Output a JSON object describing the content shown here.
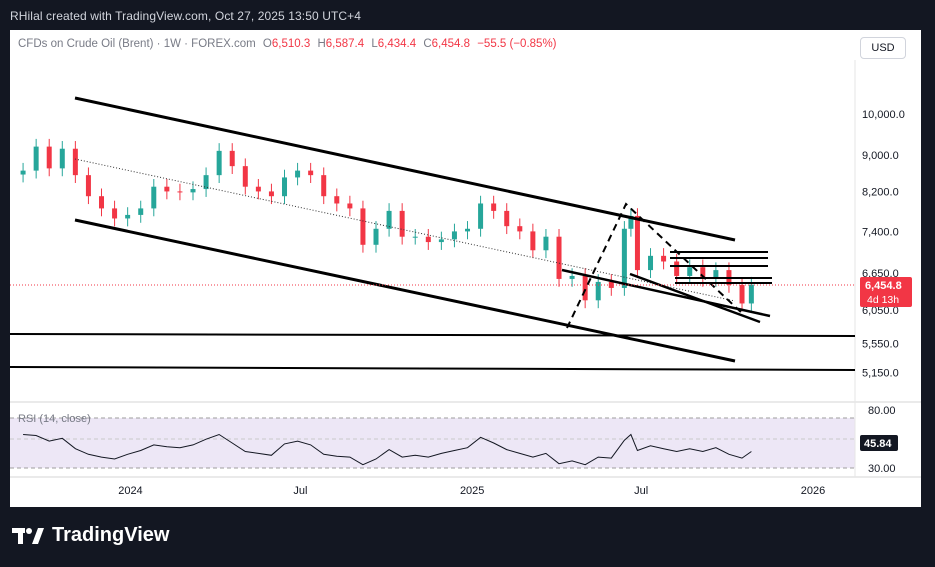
{
  "header": {
    "caption": "RHilal created with TradingView.com, Oct 27, 2025 13:50 UTC+4"
  },
  "symbol": {
    "title": "CFDs on Crude Oil (Brent) · 1W · FOREX.com",
    "open_label": "O",
    "open": "6,510.3",
    "high_label": "H",
    "high": "6,587.4",
    "low_label": "L",
    "low": "6,434.4",
    "close_label": "C",
    "close": "6,454.8",
    "change": "−55.5 (−0.85%)"
  },
  "currency_button": "USD",
  "price_badge": {
    "value": "6,454.8",
    "countdown": "4d 13h",
    "color": "#f23645"
  },
  "rsi": {
    "label": "RSI (14, close)",
    "value": "45.84",
    "upper": "80.00",
    "lower": "30.00"
  },
  "brand": {
    "name": "TradingView"
  },
  "colors": {
    "up": "#26a69a",
    "down": "#f23645",
    "rsi_band": "#ede7f6",
    "text": "#131722"
  },
  "chart_data": {
    "type": "candlestick",
    "title": "CFDs on Crude Oil (Brent) · 1W · FOREX.com",
    "y_scale": "log",
    "ylim": [
      4950,
      11200
    ],
    "y_ticks": [
      "10,000.0",
      "9,000.0",
      "8,200.0",
      "7,400.0",
      "6,650.0",
      "6,050.0",
      "5,550.0",
      "5,150.0"
    ],
    "x_ticks": [
      "2024",
      "Jul",
      "2025",
      "Jul",
      "2026"
    ],
    "close_series": [
      {
        "date": "2023-09-08",
        "value": 8650
      },
      {
        "date": "2023-09-22",
        "value": 9200
      },
      {
        "date": "2023-10-06",
        "value": 8700
      },
      {
        "date": "2023-10-20",
        "value": 9150
      },
      {
        "date": "2023-11-03",
        "value": 8550
      },
      {
        "date": "2023-11-17",
        "value": 8100
      },
      {
        "date": "2023-12-01",
        "value": 7850
      },
      {
        "date": "2023-12-15",
        "value": 7650
      },
      {
        "date": "2023-12-29",
        "value": 7720
      },
      {
        "date": "2024-01-12",
        "value": 7850
      },
      {
        "date": "2024-01-26",
        "value": 8300
      },
      {
        "date": "2024-02-09",
        "value": 8200
      },
      {
        "date": "2024-02-23",
        "value": 8180
      },
      {
        "date": "2024-03-08",
        "value": 8250
      },
      {
        "date": "2024-03-22",
        "value": 8550
      },
      {
        "date": "2024-04-05",
        "value": 9100
      },
      {
        "date": "2024-04-19",
        "value": 8750
      },
      {
        "date": "2024-05-03",
        "value": 8300
      },
      {
        "date": "2024-05-17",
        "value": 8200
      },
      {
        "date": "2024-05-31",
        "value": 8100
      },
      {
        "date": "2024-06-14",
        "value": 8500
      },
      {
        "date": "2024-06-28",
        "value": 8650
      },
      {
        "date": "2024-07-12",
        "value": 8550
      },
      {
        "date": "2024-07-26",
        "value": 8100
      },
      {
        "date": "2024-08-09",
        "value": 7950
      },
      {
        "date": "2024-08-23",
        "value": 7850
      },
      {
        "date": "2024-09-06",
        "value": 7150
      },
      {
        "date": "2024-09-20",
        "value": 7450
      },
      {
        "date": "2024-10-04",
        "value": 7800
      },
      {
        "date": "2024-10-18",
        "value": 7300
      },
      {
        "date": "2024-11-01",
        "value": 7300
      },
      {
        "date": "2024-11-15",
        "value": 7200
      },
      {
        "date": "2024-11-29",
        "value": 7250
      },
      {
        "date": "2024-12-13",
        "value": 7400
      },
      {
        "date": "2024-12-27",
        "value": 7450
      },
      {
        "date": "2025-01-10",
        "value": 7950
      },
      {
        "date": "2025-01-24",
        "value": 7800
      },
      {
        "date": "2025-02-07",
        "value": 7500
      },
      {
        "date": "2025-02-21",
        "value": 7400
      },
      {
        "date": "2025-03-07",
        "value": 7050
      },
      {
        "date": "2025-03-21",
        "value": 7300
      },
      {
        "date": "2025-04-04",
        "value": 6550
      },
      {
        "date": "2025-04-18",
        "value": 6600
      },
      {
        "date": "2025-05-02",
        "value": 6200
      },
      {
        "date": "2025-05-16",
        "value": 6500
      },
      {
        "date": "2025-05-30",
        "value": 6400
      },
      {
        "date": "2025-06-13",
        "value": 7450
      },
      {
        "date": "2025-06-20",
        "value": 7700
      },
      {
        "date": "2025-06-27",
        "value": 6700
      },
      {
        "date": "2025-07-11",
        "value": 6950
      },
      {
        "date": "2025-07-25",
        "value": 6850
      },
      {
        "date": "2025-08-08",
        "value": 6600
      },
      {
        "date": "2025-08-22",
        "value": 6750
      },
      {
        "date": "2025-09-05",
        "value": 6550
      },
      {
        "date": "2025-09-19",
        "value": 6700
      },
      {
        "date": "2025-10-03",
        "value": 6450
      },
      {
        "date": "2025-10-17",
        "value": 6150
      },
      {
        "date": "2025-10-27",
        "value": 6455
      }
    ],
    "rsi_series": [
      {
        "date": "2023-09-08",
        "value": 64
      },
      {
        "date": "2023-09-22",
        "value": 63
      },
      {
        "date": "2023-10-06",
        "value": 57
      },
      {
        "date": "2023-10-20",
        "value": 60
      },
      {
        "date": "2023-11-03",
        "value": 49
      },
      {
        "date": "2023-11-17",
        "value": 43
      },
      {
        "date": "2023-12-01",
        "value": 40
      },
      {
        "date": "2023-12-15",
        "value": 38
      },
      {
        "date": "2023-12-29",
        "value": 43
      },
      {
        "date": "2024-01-12",
        "value": 47
      },
      {
        "date": "2024-01-26",
        "value": 53
      },
      {
        "date": "2024-02-09",
        "value": 51
      },
      {
        "date": "2024-02-23",
        "value": 50
      },
      {
        "date": "2024-03-08",
        "value": 53
      },
      {
        "date": "2024-03-22",
        "value": 59
      },
      {
        "date": "2024-04-05",
        "value": 64
      },
      {
        "date": "2024-04-19",
        "value": 55
      },
      {
        "date": "2024-05-03",
        "value": 46
      },
      {
        "date": "2024-05-17",
        "value": 44
      },
      {
        "date": "2024-05-31",
        "value": 42
      },
      {
        "date": "2024-06-14",
        "value": 54
      },
      {
        "date": "2024-06-28",
        "value": 57
      },
      {
        "date": "2024-07-12",
        "value": 53
      },
      {
        "date": "2024-07-26",
        "value": 43
      },
      {
        "date": "2024-08-09",
        "value": 41
      },
      {
        "date": "2024-08-23",
        "value": 40
      },
      {
        "date": "2024-09-06",
        "value": 32
      },
      {
        "date": "2024-09-20",
        "value": 38
      },
      {
        "date": "2024-10-04",
        "value": 48
      },
      {
        "date": "2024-10-18",
        "value": 40
      },
      {
        "date": "2024-11-01",
        "value": 42
      },
      {
        "date": "2024-11-15",
        "value": 40
      },
      {
        "date": "2024-11-29",
        "value": 44
      },
      {
        "date": "2024-12-13",
        "value": 47
      },
      {
        "date": "2024-12-27",
        "value": 50
      },
      {
        "date": "2025-01-10",
        "value": 61
      },
      {
        "date": "2025-01-24",
        "value": 55
      },
      {
        "date": "2025-02-07",
        "value": 48
      },
      {
        "date": "2025-02-21",
        "value": 44
      },
      {
        "date": "2025-03-07",
        "value": 40
      },
      {
        "date": "2025-03-21",
        "value": 44
      },
      {
        "date": "2025-04-04",
        "value": 33
      },
      {
        "date": "2025-04-18",
        "value": 36
      },
      {
        "date": "2025-05-02",
        "value": 32
      },
      {
        "date": "2025-05-16",
        "value": 40
      },
      {
        "date": "2025-05-30",
        "value": 39
      },
      {
        "date": "2025-06-13",
        "value": 58
      },
      {
        "date": "2025-06-20",
        "value": 64
      },
      {
        "date": "2025-06-27",
        "value": 47
      },
      {
        "date": "2025-07-11",
        "value": 52
      },
      {
        "date": "2025-07-25",
        "value": 49
      },
      {
        "date": "2025-08-08",
        "value": 46
      },
      {
        "date": "2025-08-22",
        "value": 49
      },
      {
        "date": "2025-09-05",
        "value": 46
      },
      {
        "date": "2025-09-19",
        "value": 50
      },
      {
        "date": "2025-10-03",
        "value": 43
      },
      {
        "date": "2025-10-17",
        "value": 39
      },
      {
        "date": "2025-10-27",
        "value": 46
      }
    ],
    "rsi_ylim": [
      20,
      90
    ],
    "rsi_y_ticks": [
      "80.00",
      "30.00"
    ],
    "grid": false
  }
}
